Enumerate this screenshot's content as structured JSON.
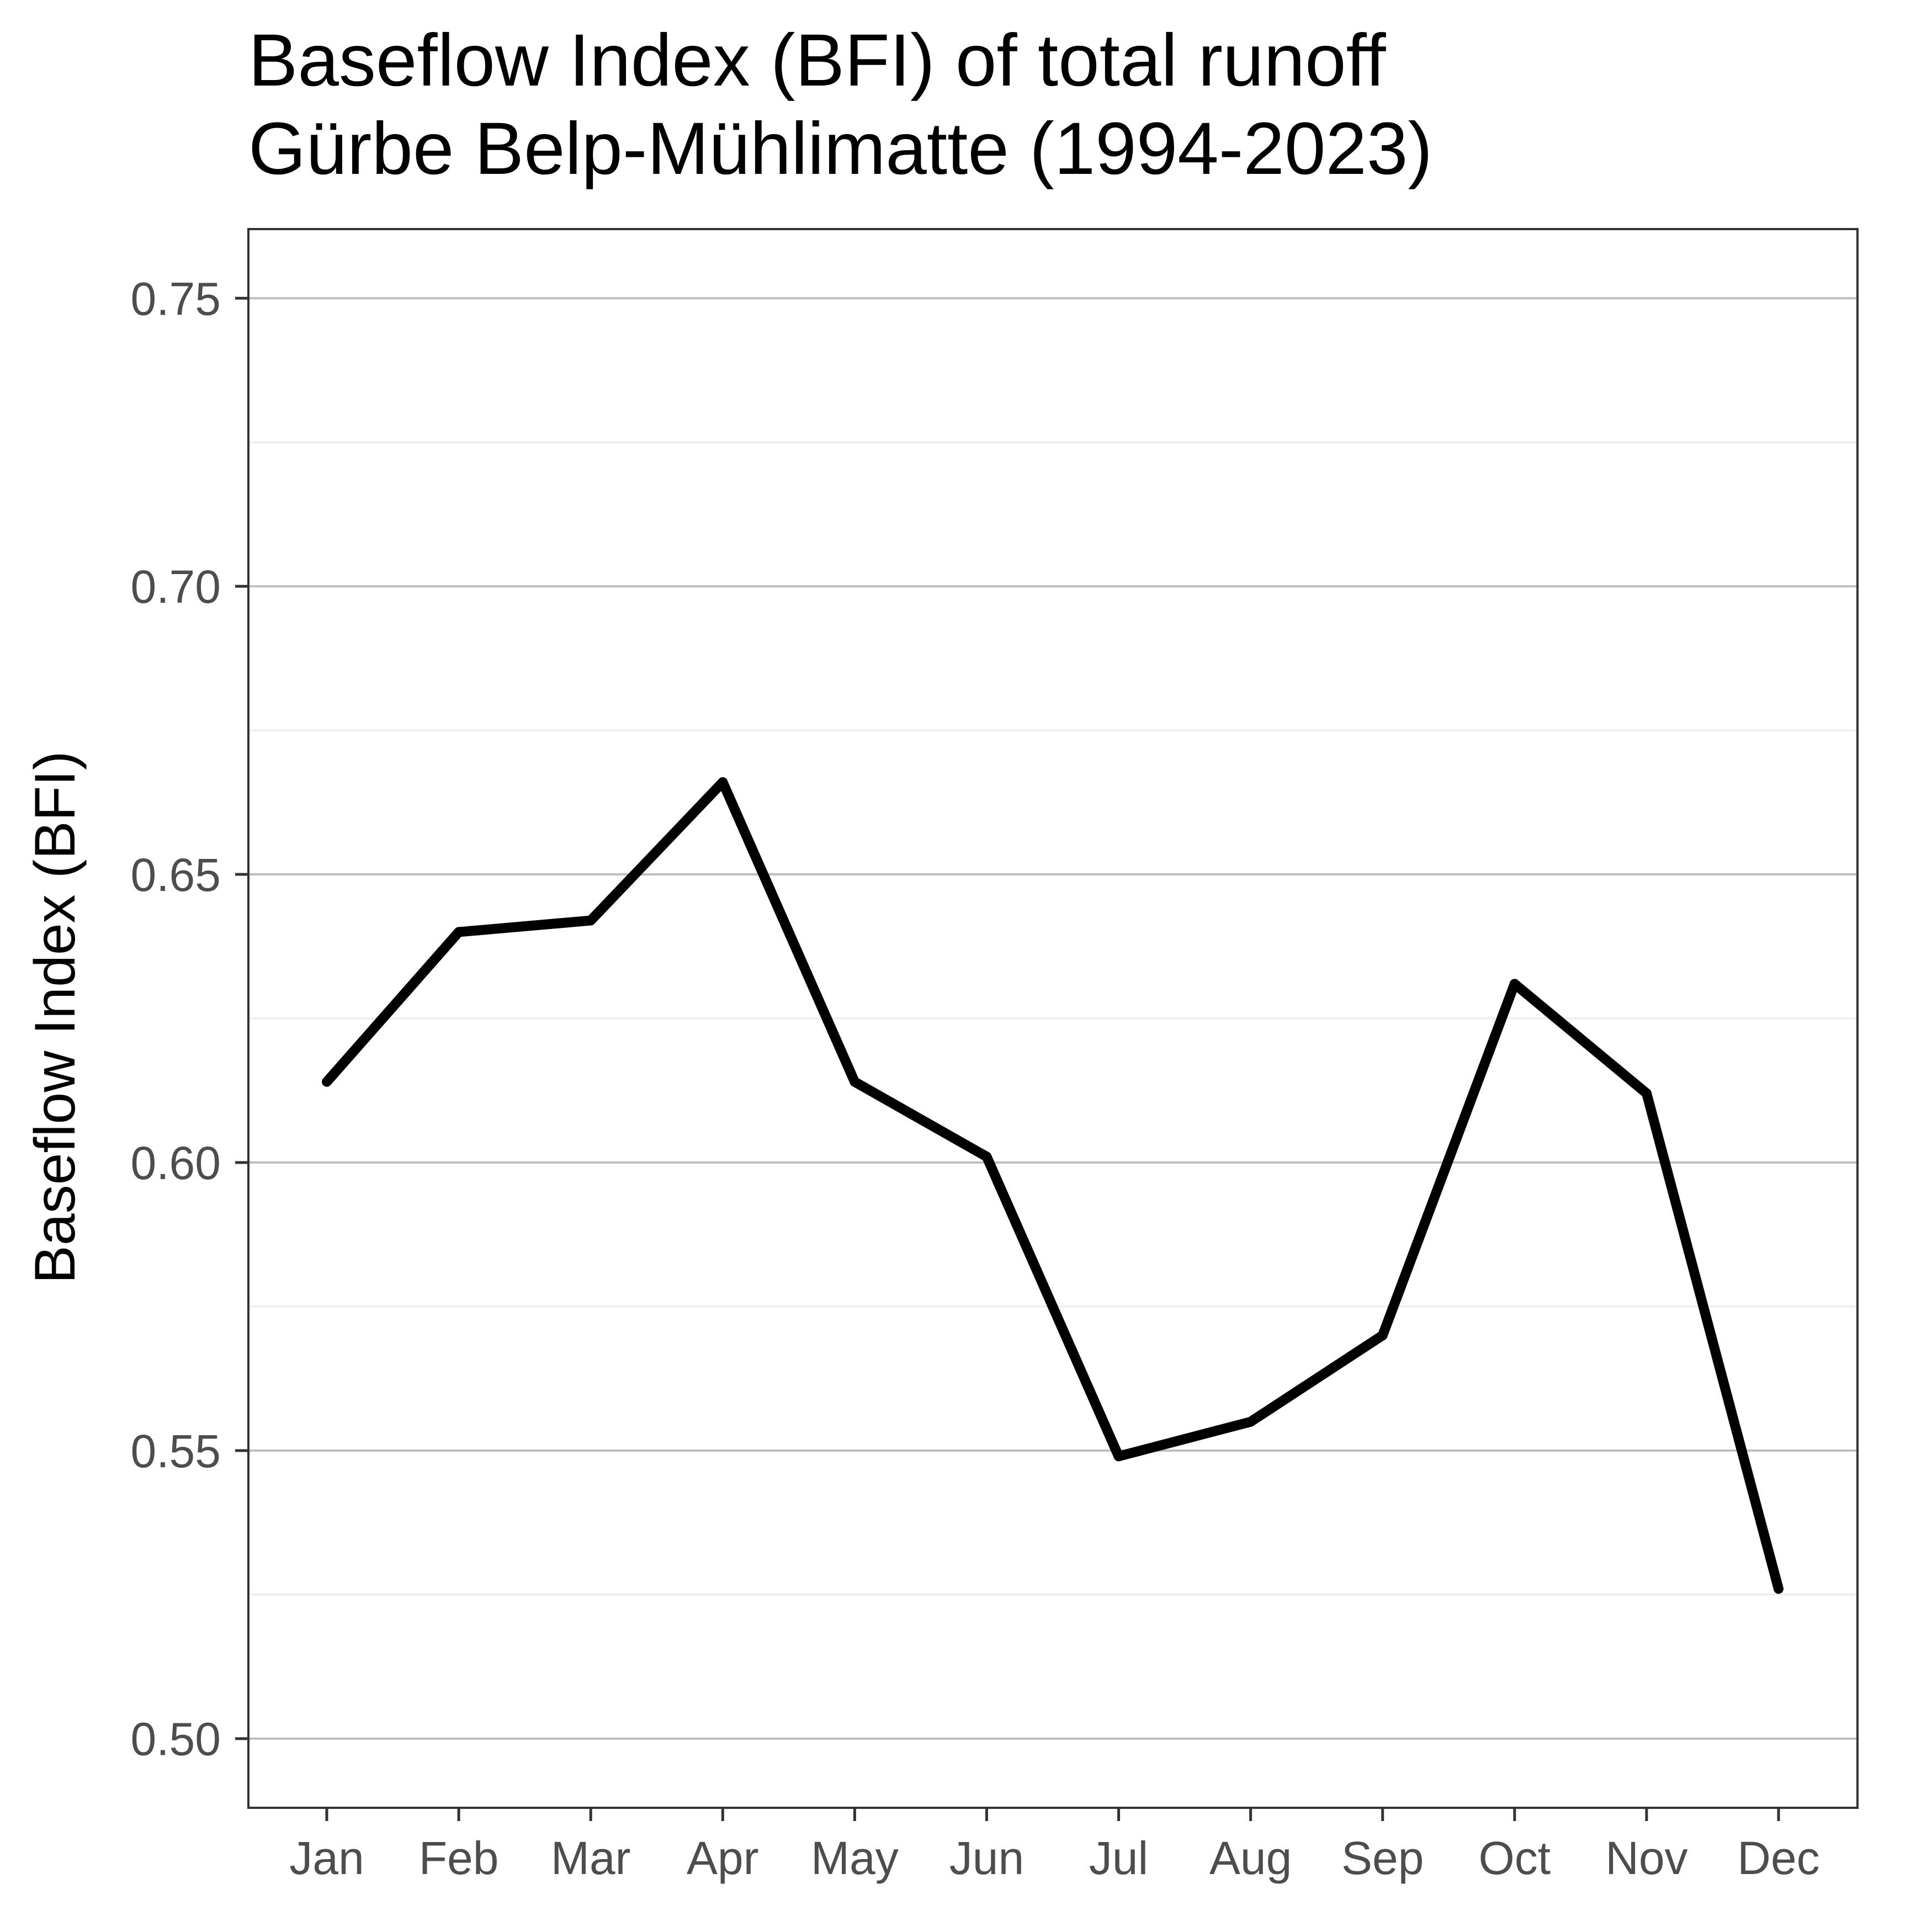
{
  "chart_data": {
    "type": "line",
    "title": "Baseflow Index (BFI) of total runoff",
    "subtitle": "Gürbe Belp-Mühlimatte (1994-2023)",
    "xlabel": "",
    "ylabel": "Baseflow Index (BFI)",
    "categories": [
      "Jan",
      "Feb",
      "Mar",
      "Apr",
      "May",
      "Jun",
      "Jul",
      "Aug",
      "Sep",
      "Oct",
      "Nov",
      "Dec"
    ],
    "series": [
      {
        "values": [
          0.614,
          0.64,
          0.642,
          0.666,
          0.614,
          0.601,
          0.549,
          0.555,
          0.57,
          0.631,
          0.612,
          0.526
        ]
      }
    ],
    "y_ticks": [
      "0.50",
      "0.55",
      "0.60",
      "0.65",
      "0.70",
      "0.75"
    ],
    "ylim": [
      0.488,
      0.762
    ],
    "grid": true,
    "line_color": "#000000",
    "grid_major_color": "#bebebe",
    "grid_minor_color": "#ebebeb",
    "panel_border_color": "#333333"
  }
}
